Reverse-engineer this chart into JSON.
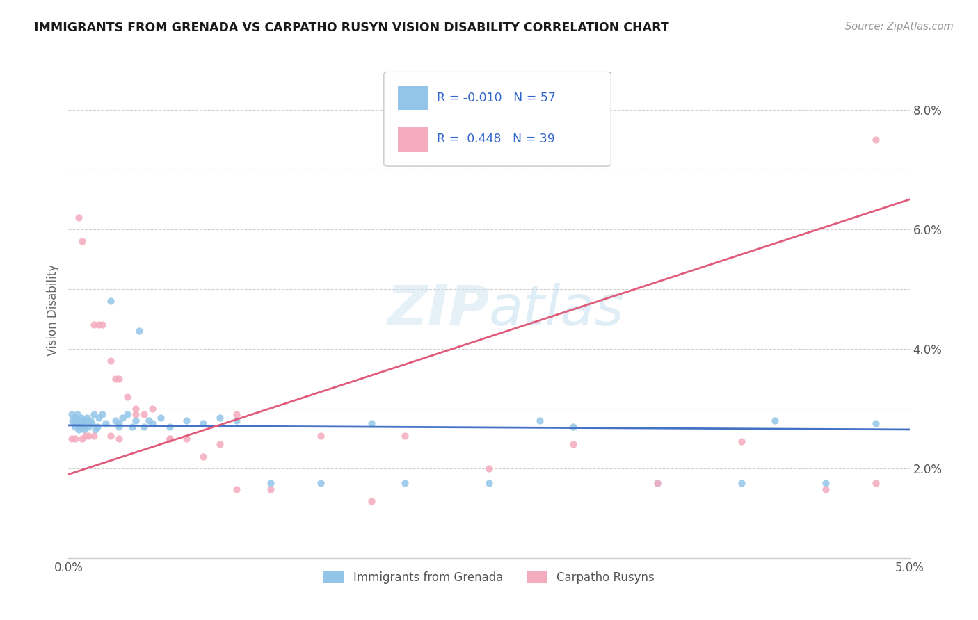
{
  "title": "IMMIGRANTS FROM GRENADA VS CARPATHO RUSYN VISION DISABILITY CORRELATION CHART",
  "source": "Source: ZipAtlas.com",
  "ylabel": "Vision Disability",
  "xlim": [
    0.0,
    0.05
  ],
  "ylim": [
    0.005,
    0.088
  ],
  "watermark": "ZIPAtlas",
  "blue_color": "#92C5E8",
  "pink_color": "#F4ABBE",
  "line_blue": "#4472C4",
  "line_pink": "#E05A7A",
  "legend_label1": "Immigrants from Grenada",
  "legend_label2": "Carpatho Rusyns",
  "blue_scatter_x": [
    0.0002,
    0.00025,
    0.0003,
    0.00035,
    0.0004,
    0.00045,
    0.0005,
    0.00055,
    0.0006,
    0.00065,
    0.0007,
    0.00075,
    0.0008,
    0.00085,
    0.0009,
    0.00095,
    0.001,
    0.0011,
    0.0012,
    0.0013,
    0.0014,
    0.0015,
    0.0016,
    0.0017,
    0.0018,
    0.002,
    0.0022,
    0.0025,
    0.0028,
    0.003,
    0.0032,
    0.0035,
    0.0038,
    0.004,
    0.0042,
    0.0045,
    0.0048,
    0.005,
    0.0055,
    0.006,
    0.007,
    0.008,
    0.009,
    0.01,
    0.012,
    0.015,
    0.018,
    0.02,
    0.025,
    0.028,
    0.03,
    0.035,
    0.04,
    0.042,
    0.045,
    0.048,
    0.003
  ],
  "blue_scatter_y": [
    0.029,
    0.028,
    0.0275,
    0.0285,
    0.027,
    0.028,
    0.029,
    0.0275,
    0.0265,
    0.028,
    0.0275,
    0.0285,
    0.027,
    0.028,
    0.0275,
    0.0265,
    0.028,
    0.0285,
    0.027,
    0.028,
    0.0275,
    0.029,
    0.0265,
    0.027,
    0.0285,
    0.029,
    0.0275,
    0.048,
    0.028,
    0.0275,
    0.0285,
    0.029,
    0.027,
    0.028,
    0.043,
    0.027,
    0.028,
    0.0275,
    0.0285,
    0.027,
    0.028,
    0.0275,
    0.0285,
    0.028,
    0.0175,
    0.0175,
    0.0275,
    0.0175,
    0.0175,
    0.028,
    0.027,
    0.0175,
    0.0175,
    0.028,
    0.0175,
    0.0275,
    0.027
  ],
  "pink_scatter_x": [
    0.0002,
    0.0004,
    0.0006,
    0.0008,
    0.001,
    0.0012,
    0.0015,
    0.0018,
    0.002,
    0.0025,
    0.0028,
    0.003,
    0.0035,
    0.004,
    0.0045,
    0.005,
    0.006,
    0.007,
    0.008,
    0.009,
    0.01,
    0.012,
    0.015,
    0.018,
    0.02,
    0.025,
    0.03,
    0.035,
    0.04,
    0.045,
    0.048,
    0.0008,
    0.0015,
    0.0025,
    0.003,
    0.004,
    0.006,
    0.01,
    0.048
  ],
  "pink_scatter_y": [
    0.025,
    0.025,
    0.062,
    0.058,
    0.0255,
    0.0255,
    0.044,
    0.044,
    0.044,
    0.038,
    0.035,
    0.035,
    0.032,
    0.03,
    0.029,
    0.03,
    0.025,
    0.025,
    0.022,
    0.024,
    0.029,
    0.0165,
    0.0255,
    0.0145,
    0.0255,
    0.02,
    0.024,
    0.0175,
    0.0245,
    0.0165,
    0.0175,
    0.025,
    0.0255,
    0.0255,
    0.025,
    0.029,
    0.025,
    0.0165,
    0.075
  ],
  "blue_line_x0": 0.0,
  "blue_line_x1": 0.05,
  "blue_line_y0": 0.0272,
  "blue_line_y1": 0.0265,
  "pink_line_x0": 0.0,
  "pink_line_x1": 0.05,
  "pink_line_y0": 0.019,
  "pink_line_y1": 0.065
}
